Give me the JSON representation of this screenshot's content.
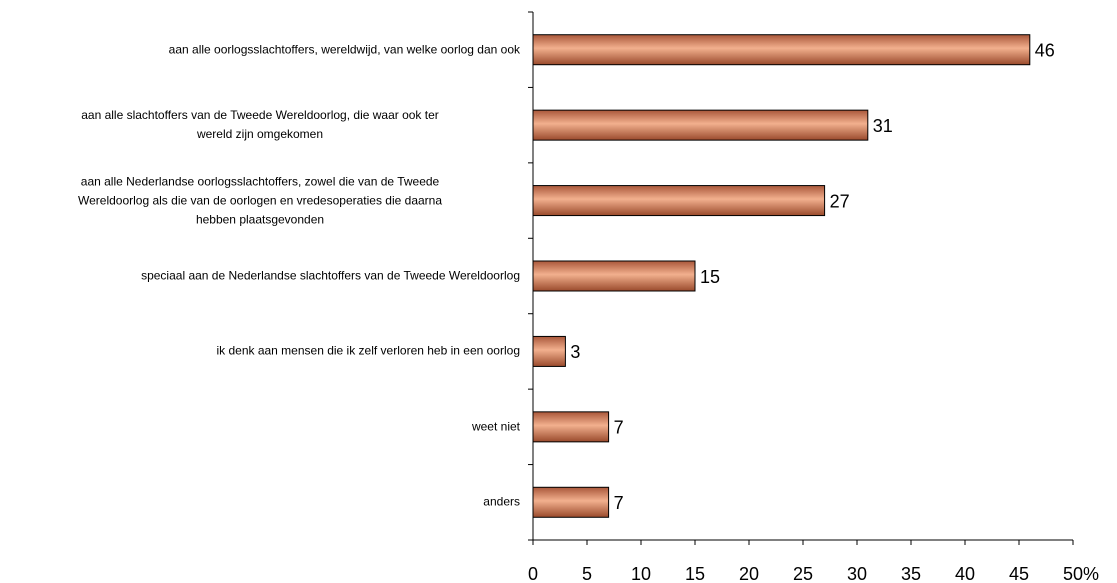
{
  "chart_data": {
    "type": "bar",
    "orientation": "horizontal",
    "categories": [
      "aan alle oorlogsslachtoffers, wereldwijd, van welke oorlog dan ook",
      "aan alle slachtoffers van de Tweede Wereldoorlog, die waar ook ter\nwereld zijn omgekomen",
      "aan alle Nederlandse oorlogsslachtoffers, zowel die van de Tweede\nWereldoorlog als die van de oorlogen en vredesoperaties die daarna\nhebben plaatsgevonden",
      "speciaal aan de Nederlandse slachtoffers van de Tweede Wereldoorlog",
      "ik denk aan mensen die ik zelf verloren heb in een oorlog",
      "weet niet",
      "anders"
    ],
    "values": [
      46,
      31,
      27,
      15,
      3,
      7,
      7
    ],
    "color": "#d98a60",
    "xlim": [
      0,
      50
    ],
    "xticks": [
      0,
      5,
      10,
      15,
      20,
      25,
      30,
      35,
      40,
      45,
      {
        "value": 50,
        "label": "50%"
      }
    ]
  }
}
